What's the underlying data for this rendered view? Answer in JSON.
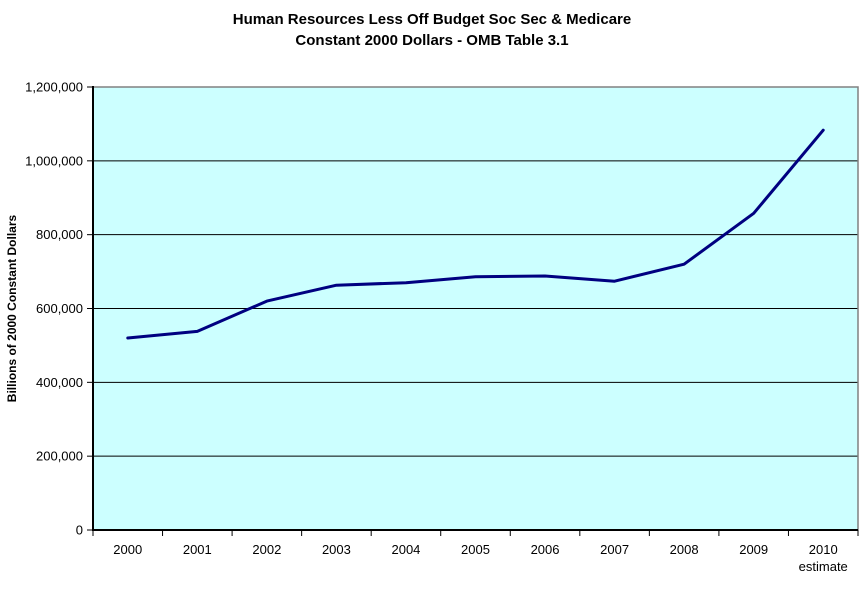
{
  "chart_data": {
    "type": "line",
    "title_line1": "Human Resources Less Off Budget Soc Sec & Medicare",
    "title_line2": "Constant 2000 Dollars - OMB Table 3.1",
    "categories": [
      "2000",
      "2001",
      "2002",
      "2003",
      "2004",
      "2005",
      "2006",
      "2007",
      "2008",
      "2009",
      "2010"
    ],
    "last_category_note": "estimate",
    "values": [
      520000,
      538000,
      620000,
      663000,
      670000,
      686000,
      688000,
      674000,
      720000,
      858000,
      1083000
    ],
    "xlabel": "",
    "ylabel": "Billions of 2000 Constant Dollars",
    "ylim": [
      0,
      1200000
    ],
    "yticks": [
      0,
      200000,
      400000,
      600000,
      800000,
      1000000,
      1200000
    ],
    "ytick_labels": [
      "0",
      "200,000",
      "400,000",
      "600,000",
      "800,000",
      "1,000,000",
      "1,200,000"
    ],
    "grid": true,
    "legend": "none",
    "colors": {
      "line": "#000080",
      "plot_bg": "#CCFFFF",
      "plot_border": "#808080",
      "axis": "#000000",
      "gridline": "#000000",
      "page_bg": "#FFFFFF",
      "text": "#000000"
    }
  }
}
